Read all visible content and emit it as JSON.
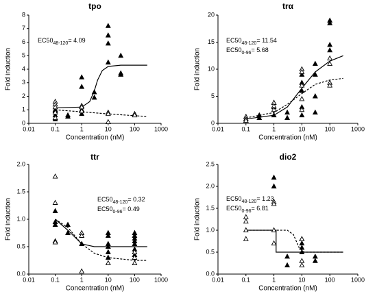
{
  "chart_data": [
    {
      "type": "scatter",
      "title": "tpo",
      "xlabel": "Concentration (nM)",
      "ylabel": "Fold induction",
      "xscale": "log",
      "xlim": [
        0.01,
        1000
      ],
      "xticks": [
        0.01,
        0.1,
        1,
        10,
        100,
        1000
      ],
      "ylim": [
        0,
        8
      ],
      "yticks": [
        0,
        1,
        2,
        3,
        4,
        5,
        6,
        7,
        8
      ],
      "annotations": [
        {
          "base": "EC50",
          "subscript": "48-120",
          "rest": "= 4.09"
        }
      ],
      "series": [
        {
          "marker": "filled",
          "color": "#000000",
          "x": [
            0.1,
            0.1,
            0.1,
            0.1,
            0.3,
            0.3,
            1,
            1,
            1,
            1,
            3,
            3,
            10,
            10,
            10,
            10,
            30,
            30,
            30
          ],
          "values": [
            1.0,
            0.9,
            0.6,
            0.3,
            0.6,
            0.5,
            3.4,
            2.7,
            1.0,
            0.7,
            2.3,
            1.9,
            7.2,
            6.5,
            5.9,
            4.5,
            5.0,
            3.7,
            3.6
          ]
        },
        {
          "marker": "open",
          "color": "#000000",
          "x": [
            0.1,
            0.1,
            0.1,
            0.1,
            0.1,
            1,
            1,
            1,
            10,
            10,
            10,
            100,
            100
          ],
          "values": [
            1.6,
            1.4,
            1.2,
            0.8,
            0.4,
            1.3,
            1.2,
            0.9,
            0.8,
            0.7,
            0.1,
            0.7,
            0.6
          ]
        }
      ],
      "curves": [
        {
          "style": "solid",
          "x": [
            0.1,
            1,
            2,
            3,
            4,
            6,
            10,
            30,
            300
          ],
          "values": [
            1.15,
            1.2,
            1.6,
            2.4,
            3.2,
            3.9,
            4.2,
            4.3,
            4.3
          ]
        },
        {
          "style": "dashed",
          "x": [
            0.1,
            1,
            10,
            300
          ],
          "values": [
            1.0,
            0.85,
            0.7,
            0.5
          ]
        }
      ]
    },
    {
      "type": "scatter",
      "title": "trα",
      "xlabel": "Concentration (nM)",
      "ylabel": "Fold induction",
      "xscale": "log",
      "xlim": [
        0.01,
        1000
      ],
      "xticks": [
        0.01,
        0.1,
        1,
        10,
        100,
        1000
      ],
      "ylim": [
        0,
        20
      ],
      "yticks": [
        0,
        5,
        10,
        15,
        20
      ],
      "annotations": [
        {
          "base": "EC50",
          "subscript": "48-120",
          "rest": "= 11.54"
        },
        {
          "base": "EC50",
          "subscript": "0-96",
          "rest": "= 5.68"
        }
      ],
      "series": [
        {
          "marker": "filled",
          "color": "#000000",
          "x": [
            0.1,
            0.1,
            0.1,
            0.3,
            0.3,
            1,
            1,
            1,
            3,
            3,
            10,
            10,
            10,
            10,
            10,
            30,
            30,
            30,
            30,
            100,
            100,
            100,
            100
          ],
          "values": [
            1.2,
            0.8,
            0.5,
            1.5,
            1.0,
            3.8,
            3.0,
            1.5,
            2.0,
            1.0,
            9.0,
            7.5,
            6.0,
            3.0,
            1.5,
            11.0,
            9.0,
            5.0,
            2.0,
            19,
            18.5,
            14.5,
            13.5
          ]
        },
        {
          "marker": "open",
          "color": "#000000",
          "x": [
            0.1,
            0.1,
            0.1,
            1,
            1,
            1,
            10,
            10,
            10,
            10,
            10,
            100,
            100,
            100,
            100
          ],
          "values": [
            1.2,
            0.8,
            0.5,
            3.8,
            3.2,
            2.5,
            10,
            9.5,
            7,
            4.5,
            2.5,
            12,
            11,
            7.5,
            7
          ]
        }
      ],
      "curves": [
        {
          "style": "solid",
          "x": [
            0.1,
            1,
            3,
            10,
            30,
            100,
            300
          ],
          "values": [
            0.8,
            1.5,
            3,
            6.5,
            9.5,
            11.5,
            12.5
          ]
        },
        {
          "style": "dashed",
          "x": [
            0.1,
            1,
            3,
            10,
            30,
            100,
            300
          ],
          "values": [
            1.0,
            2,
            3.5,
            5.5,
            7.2,
            8,
            8.3
          ]
        }
      ]
    },
    {
      "type": "scatter",
      "title": "ttr",
      "xlabel": "Concentration (nM)",
      "ylabel": "Fold induction",
      "xscale": "log",
      "xlim": [
        0.01,
        1000
      ],
      "xticks": [
        0.01,
        0.1,
        1,
        10,
        100,
        1000
      ],
      "ylim": [
        0,
        2
      ],
      "yticks": [
        {
          "value": 0,
          "label": "0.0"
        },
        0.5,
        {
          "value": 1,
          "label": "1.0"
        },
        1.5,
        {
          "value": 2,
          "label": "2.0"
        }
      ],
      "annotations": [
        {
          "base": "EC50",
          "subscript": "48-120",
          "rest": "= 0.32"
        },
        {
          "base": "EC50",
          "subscript": "0-96",
          "rest": "= 0.49"
        }
      ],
      "series": [
        {
          "marker": "filled",
          "color": "#000000",
          "x": [
            0.1,
            0.1,
            0.1,
            0.3,
            0.3,
            1,
            1,
            10,
            10,
            10,
            10,
            10,
            10,
            100,
            100,
            100,
            100,
            100,
            100,
            100
          ],
          "values": [
            1.15,
            0.95,
            0.9,
            0.9,
            0.75,
            0.7,
            0.55,
            0.75,
            0.7,
            0.55,
            0.5,
            0.4,
            0.3,
            0.75,
            0.7,
            0.65,
            0.6,
            0.55,
            0.45,
            0.35
          ]
        },
        {
          "marker": "open",
          "color": "#000000",
          "x": [
            0.1,
            0.1,
            0.1,
            0.1,
            1,
            1,
            1,
            10,
            100,
            100,
            100
          ],
          "values": [
            1.78,
            1.3,
            0.6,
            0.58,
            0.75,
            0.7,
            0.05,
            0.2,
            0.4,
            0.3,
            0.2
          ]
        }
      ],
      "curves": [
        {
          "style": "solid",
          "x": [
            0.1,
            0.3,
            1,
            3,
            300
          ],
          "values": [
            1.0,
            0.8,
            0.55,
            0.5,
            0.5
          ]
        },
        {
          "style": "dashed",
          "x": [
            0.1,
            0.3,
            1,
            3,
            10,
            100,
            300
          ],
          "values": [
            1.0,
            0.85,
            0.55,
            0.38,
            0.3,
            0.25,
            0.25
          ]
        }
      ]
    },
    {
      "type": "scatter",
      "title": "dio2",
      "xlabel": "Concentration (nM)",
      "ylabel": "Fold induction",
      "xscale": "log",
      "xlim": [
        0.01,
        1000
      ],
      "xticks": [
        0.01,
        0.1,
        1,
        10,
        100,
        1000
      ],
      "ylim": [
        0,
        2.5
      ],
      "yticks": [
        {
          "value": 0,
          "label": "0.0"
        },
        0.5,
        {
          "value": 1,
          "label": "1.0"
        },
        1.5,
        {
          "value": 2,
          "label": "2.0"
        },
        2.5
      ],
      "annotations": [
        {
          "base": "EC50",
          "subscript": "48-120",
          "rest": "= 1.23"
        },
        {
          "base": "EC50",
          "subscript": "0-96",
          "rest": "= 6.81"
        }
      ],
      "series": [
        {
          "marker": "filled",
          "color": "#000000",
          "x": [
            1,
            1,
            3,
            3,
            10,
            10,
            10,
            10,
            30,
            30
          ],
          "values": [
            2.2,
            2.0,
            0.4,
            0.2,
            0.8,
            0.7,
            0.6,
            0.5,
            0.4,
            0.3
          ]
        },
        {
          "marker": "open",
          "color": "#000000",
          "x": [
            0.1,
            0.1,
            0.1,
            0.1,
            1,
            1,
            1,
            1,
            10,
            10,
            10
          ],
          "values": [
            1.3,
            1.2,
            1.0,
            0.8,
            1.65,
            1.6,
            1.0,
            0.7,
            0.8,
            0.3,
            0.2
          ]
        }
      ],
      "curves": [
        {
          "style": "solid",
          "x": [
            0.1,
            1.2,
            1.2,
            300
          ],
          "values": [
            1.0,
            1.0,
            0.5,
            0.5
          ]
        },
        {
          "style": "dashed",
          "x": [
            0.1,
            3,
            5,
            8,
            12,
            300
          ],
          "values": [
            1.0,
            1.0,
            0.9,
            0.6,
            0.5,
            0.5
          ]
        }
      ]
    }
  ]
}
